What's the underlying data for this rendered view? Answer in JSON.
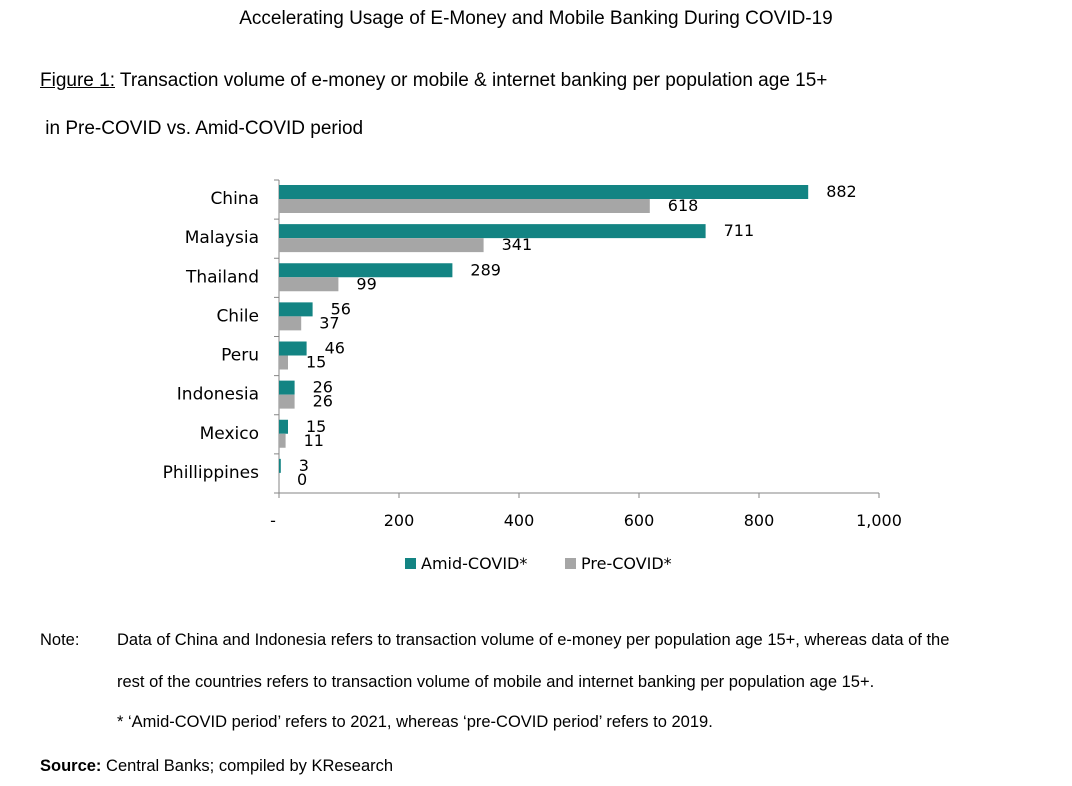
{
  "header": {
    "title": "Accelerating Usage of E-Money and Mobile Banking During COVID-19",
    "figure_label": "Figure 1:",
    "figure_caption_line1": " Transaction volume of e-money or mobile & internet banking per population age 15+",
    "figure_caption_line2": " in Pre-COVID vs. Amid-COVID period"
  },
  "chart_data": {
    "type": "bar",
    "orientation": "horizontal",
    "categories": [
      "China",
      "Malaysia",
      "Thailand",
      "Chile",
      "Peru",
      "Indonesia",
      "Mexico",
      "Phillippines"
    ],
    "series": [
      {
        "name": "Amid-COVID*",
        "values": [
          882,
          711,
          289,
          56,
          46,
          26,
          15,
          3
        ],
        "color": "#138483"
      },
      {
        "name": "Pre-COVID*",
        "values": [
          618,
          341,
          99,
          37,
          15,
          26,
          11,
          0
        ],
        "color": "#a6a6a6"
      }
    ],
    "xlim": [
      0,
      1000
    ],
    "xticks": [
      0,
      200,
      400,
      600,
      800,
      1000
    ],
    "xtick_labels": [
      "-",
      "200",
      "400",
      "600",
      "800",
      "1,000"
    ],
    "data_labels": true,
    "legend_position": "bottom",
    "grid": false
  },
  "footer": {
    "note_label": "Note:",
    "note_line1": "Data of China and Indonesia refers to transaction volume of e-money per population age 15+, whereas data of the",
    "note_line2": "rest of the countries refers to transaction volume of mobile and internet banking per population age 15+.",
    "note_line3": "* ‘Amid-COVID period’ refers to 2021, whereas ‘pre-COVID period’ refers to 2019.",
    "source_label": "Source:",
    "source_text": " Central Banks; compiled by KResearch"
  }
}
